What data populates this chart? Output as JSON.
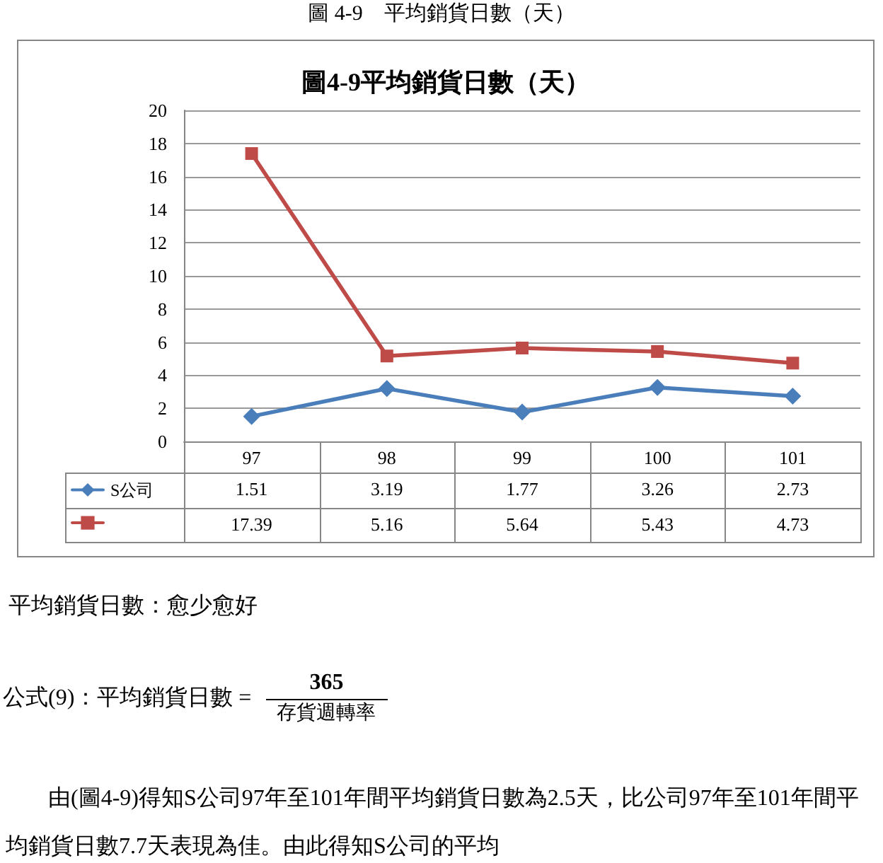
{
  "chart_data": {
    "type": "line",
    "title": "圖4-9平均銷貨日數（天）",
    "categories": [
      "97",
      "98",
      "99",
      "100",
      "101"
    ],
    "series": [
      {
        "name": "S公司",
        "color": "#4a7ebb",
        "marker": "diamond",
        "values": [
          1.51,
          3.19,
          1.77,
          3.26,
          2.73
        ]
      },
      {
        "color": "#be4b48",
        "marker": "square",
        "values": [
          17.39,
          5.16,
          5.64,
          5.43,
          4.73
        ]
      }
    ],
    "ylim": [
      0,
      20
    ],
    "yticks": [
      0,
      2,
      4,
      6,
      8,
      10,
      12,
      14,
      16,
      18,
      20
    ],
    "grid": "y",
    "legend": "bottom left",
    "data_labels": true,
    "line_style": "solid",
    "annotations": [
      "圖 4-9　平均銷貨日數（天）",
      "平均銷貨日數：愈少愈好",
      "公式(9)：平均銷貨日數 =",
      "365",
      "存貨週轉率",
      "由(圖4-9)得知S公司97年至101年間平均銷貨日數為2.5天，比公司97年至101年間平均銷貨日數7.7天表現為佳。由此得知S公司的平均"
    ]
  }
}
